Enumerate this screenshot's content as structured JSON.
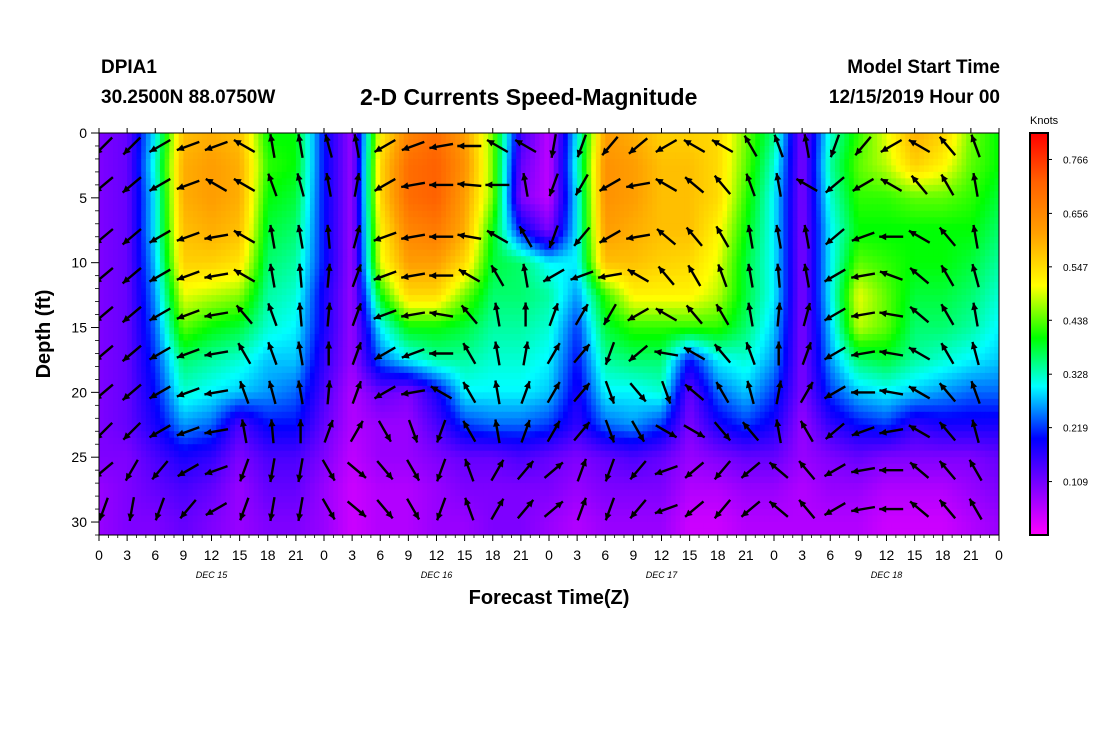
{
  "header": {
    "station_id": "DPIA1",
    "coords": "30.2500N 88.0750W",
    "title": "2-D Currents Speed-Magnitude",
    "start_label": "Model Start Time",
    "start_value": "12/15/2019 Hour 00"
  },
  "chart_data": {
    "type": "heatmap",
    "title": "2-D Currents Speed-Magnitude",
    "xlabel": "Forecast Time(Z)",
    "ylabel": "Depth (ft)",
    "x_ticks": [
      "0",
      "3",
      "6",
      "9",
      "12",
      "15",
      "18",
      "21",
      "0",
      "3",
      "6",
      "9",
      "12",
      "15",
      "18",
      "21",
      "0",
      "3",
      "6",
      "9",
      "12",
      "15",
      "18",
      "21",
      "0",
      "3",
      "6",
      "9",
      "12",
      "15",
      "18",
      "21",
      "0"
    ],
    "day_labels": [
      "DEC 15",
      "DEC 16",
      "DEC 17",
      "DEC 18"
    ],
    "x_range_hours": [
      0,
      96
    ],
    "y_ticks": [
      0,
      5,
      10,
      15,
      20,
      25,
      30
    ],
    "ylim": [
      0,
      31
    ],
    "colorbar": {
      "unit": "Knots",
      "ticks": [
        0.766,
        0.656,
        0.547,
        0.438,
        0.328,
        0.219,
        0.109
      ],
      "range": [
        0.0,
        0.82
      ]
    },
    "depths_ft": [
      0,
      2.5,
      5,
      7.5,
      10,
      12.5,
      15,
      17.5,
      20,
      22.5,
      25,
      27.5,
      30
    ],
    "hours": [
      0,
      3,
      6,
      9,
      12,
      15,
      18,
      21,
      24,
      27,
      30,
      33,
      36,
      39,
      42,
      45,
      48,
      51,
      54,
      57,
      60,
      63,
      66,
      69,
      72,
      75,
      78,
      81,
      84,
      87,
      90,
      93,
      96
    ],
    "speed_knots": [
      [
        0.1,
        0.12,
        0.3,
        0.58,
        0.6,
        0.58,
        0.4,
        0.4,
        0.2,
        0.08,
        0.52,
        0.66,
        0.7,
        0.62,
        0.45,
        0.15,
        0.05,
        0.3,
        0.62,
        0.6,
        0.56,
        0.56,
        0.55,
        0.45,
        0.35,
        0.1,
        0.32,
        0.42,
        0.5,
        0.6,
        0.56,
        0.45,
        0.4
      ],
      [
        0.1,
        0.12,
        0.32,
        0.6,
        0.62,
        0.6,
        0.42,
        0.4,
        0.2,
        0.08,
        0.55,
        0.7,
        0.72,
        0.64,
        0.45,
        0.12,
        0.05,
        0.32,
        0.64,
        0.62,
        0.58,
        0.58,
        0.55,
        0.44,
        0.32,
        0.1,
        0.34,
        0.44,
        0.48,
        0.56,
        0.52,
        0.44,
        0.4
      ],
      [
        0.1,
        0.12,
        0.3,
        0.6,
        0.62,
        0.6,
        0.4,
        0.38,
        0.2,
        0.08,
        0.55,
        0.7,
        0.72,
        0.62,
        0.45,
        0.1,
        0.05,
        0.3,
        0.64,
        0.62,
        0.58,
        0.58,
        0.55,
        0.42,
        0.3,
        0.1,
        0.32,
        0.42,
        0.42,
        0.44,
        0.44,
        0.42,
        0.38
      ],
      [
        0.1,
        0.12,
        0.3,
        0.58,
        0.6,
        0.58,
        0.38,
        0.36,
        0.2,
        0.08,
        0.52,
        0.66,
        0.68,
        0.6,
        0.4,
        0.2,
        0.1,
        0.3,
        0.62,
        0.6,
        0.58,
        0.58,
        0.52,
        0.4,
        0.3,
        0.1,
        0.3,
        0.4,
        0.4,
        0.4,
        0.4,
        0.4,
        0.36
      ],
      [
        0.1,
        0.12,
        0.28,
        0.56,
        0.56,
        0.54,
        0.36,
        0.34,
        0.2,
        0.08,
        0.5,
        0.62,
        0.62,
        0.55,
        0.38,
        0.36,
        0.3,
        0.3,
        0.58,
        0.58,
        0.56,
        0.55,
        0.5,
        0.38,
        0.3,
        0.1,
        0.3,
        0.44,
        0.42,
        0.4,
        0.4,
        0.38,
        0.34
      ],
      [
        0.1,
        0.12,
        0.26,
        0.5,
        0.48,
        0.46,
        0.34,
        0.32,
        0.18,
        0.08,
        0.4,
        0.55,
        0.55,
        0.45,
        0.36,
        0.36,
        0.34,
        0.26,
        0.42,
        0.52,
        0.52,
        0.52,
        0.48,
        0.38,
        0.3,
        0.1,
        0.3,
        0.5,
        0.44,
        0.38,
        0.38,
        0.36,
        0.32
      ],
      [
        0.1,
        0.12,
        0.24,
        0.44,
        0.4,
        0.38,
        0.32,
        0.3,
        0.18,
        0.08,
        0.3,
        0.4,
        0.4,
        0.38,
        0.34,
        0.34,
        0.32,
        0.22,
        0.38,
        0.42,
        0.42,
        0.42,
        0.42,
        0.36,
        0.28,
        0.1,
        0.28,
        0.48,
        0.44,
        0.36,
        0.36,
        0.34,
        0.3
      ],
      [
        0.1,
        0.12,
        0.22,
        0.36,
        0.34,
        0.32,
        0.28,
        0.28,
        0.16,
        0.08,
        0.24,
        0.3,
        0.34,
        0.34,
        0.32,
        0.32,
        0.3,
        0.2,
        0.34,
        0.36,
        0.36,
        0.2,
        0.3,
        0.32,
        0.26,
        0.1,
        0.26,
        0.36,
        0.38,
        0.34,
        0.32,
        0.3,
        0.28
      ],
      [
        0.1,
        0.12,
        0.2,
        0.32,
        0.3,
        0.28,
        0.26,
        0.24,
        0.14,
        0.06,
        0.12,
        0.1,
        0.18,
        0.3,
        0.3,
        0.3,
        0.28,
        0.18,
        0.3,
        0.3,
        0.32,
        0.12,
        0.24,
        0.28,
        0.22,
        0.1,
        0.22,
        0.28,
        0.3,
        0.28,
        0.26,
        0.24,
        0.24
      ],
      [
        0.1,
        0.12,
        0.18,
        0.26,
        0.24,
        0.14,
        0.2,
        0.2,
        0.12,
        0.06,
        0.08,
        0.08,
        0.14,
        0.22,
        0.24,
        0.24,
        0.22,
        0.16,
        0.24,
        0.26,
        0.22,
        0.1,
        0.18,
        0.22,
        0.18,
        0.08,
        0.16,
        0.2,
        0.22,
        0.16,
        0.18,
        0.18,
        0.18
      ],
      [
        0.1,
        0.1,
        0.14,
        0.18,
        0.16,
        0.1,
        0.14,
        0.14,
        0.1,
        0.05,
        0.08,
        0.08,
        0.1,
        0.12,
        0.12,
        0.14,
        0.12,
        0.1,
        0.12,
        0.14,
        0.12,
        0.08,
        0.1,
        0.12,
        0.12,
        0.08,
        0.1,
        0.12,
        0.1,
        0.1,
        0.1,
        0.1,
        0.12
      ],
      [
        0.08,
        0.1,
        0.12,
        0.14,
        0.12,
        0.08,
        0.12,
        0.12,
        0.08,
        0.04,
        0.06,
        0.06,
        0.08,
        0.1,
        0.1,
        0.1,
        0.1,
        0.08,
        0.1,
        0.1,
        0.1,
        0.06,
        0.06,
        0.08,
        0.08,
        0.06,
        0.08,
        0.08,
        0.06,
        0.06,
        0.06,
        0.08,
        0.1
      ],
      [
        0.08,
        0.1,
        0.1,
        0.12,
        0.1,
        0.08,
        0.1,
        0.1,
        0.08,
        0.04,
        0.06,
        0.06,
        0.08,
        0.08,
        0.1,
        0.1,
        0.08,
        0.06,
        0.08,
        0.08,
        0.08,
        0.04,
        0.04,
        0.06,
        0.06,
        0.06,
        0.06,
        0.06,
        0.04,
        0.04,
        0.04,
        0.06,
        0.08
      ]
    ],
    "vector_hours": [
      0.5,
      3.5,
      6.5,
      9.5,
      12.5,
      15.5,
      18.5,
      21.5,
      24.5,
      27.5,
      30.5,
      33.5,
      36.5,
      39.5,
      42.5,
      45.5,
      48.5,
      51.5,
      54.5,
      57.5,
      60.5,
      63.5,
      66.5,
      69.5,
      72.5,
      75.5,
      78.5,
      81.5,
      84.5,
      87.5,
      90.5,
      93.5
    ],
    "vector_depths_ft": [
      1,
      4,
      8,
      11,
      14,
      17,
      20,
      23,
      26,
      29
    ],
    "vector_direction_deg": [
      [
        225,
        225,
        240,
        250,
        250,
        300,
        350,
        350,
        345,
        350,
        240,
        250,
        260,
        270,
        300,
        300,
        190,
        200,
        220,
        230,
        240,
        300,
        300,
        330,
        340,
        350,
        200,
        220,
        240,
        300,
        320,
        340
      ],
      [
        230,
        230,
        240,
        250,
        300,
        300,
        340,
        345,
        350,
        10,
        240,
        260,
        270,
        275,
        270,
        350,
        200,
        210,
        240,
        260,
        300,
        310,
        320,
        340,
        350,
        300,
        230,
        240,
        300,
        320,
        330,
        350
      ],
      [
        230,
        230,
        240,
        250,
        260,
        300,
        350,
        350,
        355,
        15,
        250,
        260,
        270,
        280,
        300,
        330,
        200,
        220,
        240,
        260,
        310,
        320,
        330,
        350,
        350,
        350,
        230,
        250,
        270,
        300,
        320,
        350
      ],
      [
        230,
        230,
        240,
        250,
        260,
        300,
        350,
        355,
        5,
        20,
        250,
        260,
        270,
        300,
        330,
        350,
        240,
        250,
        260,
        300,
        320,
        330,
        340,
        350,
        355,
        350,
        240,
        260,
        290,
        310,
        330,
        345
      ],
      [
        230,
        230,
        240,
        250,
        260,
        320,
        340,
        355,
        5,
        20,
        250,
        260,
        280,
        320,
        350,
        0,
        20,
        30,
        210,
        240,
        300,
        320,
        330,
        350,
        5,
        15,
        240,
        260,
        280,
        310,
        330,
        350
      ],
      [
        230,
        230,
        240,
        250,
        260,
        330,
        340,
        350,
        0,
        20,
        240,
        250,
        270,
        330,
        350,
        10,
        30,
        40,
        200,
        230,
        280,
        300,
        320,
        340,
        0,
        20,
        240,
        260,
        280,
        300,
        330,
        345
      ],
      [
        230,
        230,
        240,
        250,
        260,
        340,
        345,
        350,
        5,
        20,
        240,
        260,
        300,
        330,
        350,
        20,
        30,
        40,
        160,
        140,
        160,
        310,
        330,
        345,
        10,
        30,
        240,
        270,
        280,
        300,
        320,
        340
      ],
      [
        225,
        225,
        240,
        250,
        260,
        350,
        355,
        0,
        20,
        30,
        150,
        160,
        200,
        330,
        350,
        20,
        30,
        40,
        160,
        150,
        120,
        120,
        140,
        320,
        350,
        330,
        230,
        250,
        260,
        300,
        320,
        345
      ],
      [
        230,
        210,
        220,
        240,
        250,
        200,
        190,
        190,
        150,
        130,
        140,
        150,
        200,
        340,
        30,
        40,
        50,
        20,
        200,
        220,
        250,
        230,
        220,
        230,
        310,
        320,
        240,
        260,
        270,
        310,
        320,
        330
      ],
      [
        200,
        190,
        200,
        220,
        240,
        200,
        190,
        190,
        150,
        130,
        140,
        150,
        200,
        340,
        30,
        40,
        50,
        20,
        200,
        220,
        250,
        230,
        220,
        230,
        310,
        320,
        240,
        260,
        270,
        310,
        320,
        330
      ]
    ]
  }
}
